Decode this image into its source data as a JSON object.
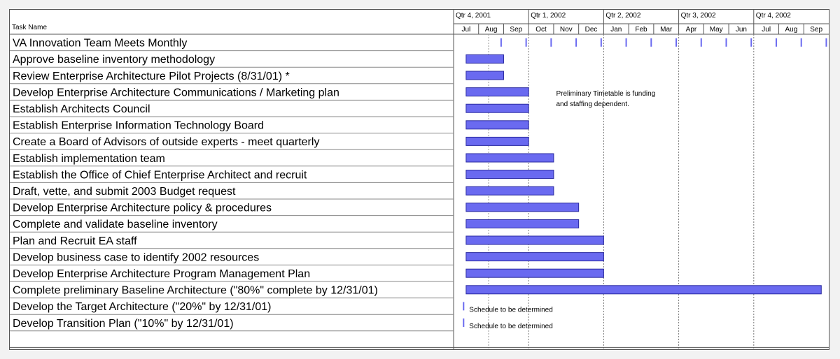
{
  "chart_data": {
    "type": "gantt",
    "task_column_header": "Task Name",
    "quarters": [
      "Qtr 4, 2001",
      "Qtr 1, 2002",
      "Qtr 2, 2002",
      "Qtr 3, 2002",
      "Qtr 4, 2002"
    ],
    "months": [
      "Jul",
      "Aug",
      "Sep",
      "Oct",
      "Nov",
      "Dec",
      "Jan",
      "Feb",
      "Mar",
      "Apr",
      "May",
      "Jun",
      "Jul",
      "Aug",
      "Sep"
    ],
    "bar_color": "#6a6af0",
    "tasks": [
      {
        "name": "VA Innovation Team Meets Monthly",
        "type": "recurring",
        "months": [
          1.9,
          2.9,
          3.9,
          4.9,
          5.9,
          6.9,
          7.9,
          8.9,
          9.9,
          10.9,
          11.9,
          12.9,
          13.9,
          14.9
        ]
      },
      {
        "name": "Approve baseline inventory methodology",
        "start": 0.5,
        "end": 2.0
      },
      {
        "name": "Review Enterprise Architecture Pilot Projects (8/31/01) *",
        "start": 0.5,
        "end": 2.0
      },
      {
        "name": "Develop Enterprise Architecture Communications / Marketing plan",
        "start": 0.5,
        "end": 3.0
      },
      {
        "name": "Establish Architects Council",
        "start": 0.5,
        "end": 3.0
      },
      {
        "name": "Establish Enterprise Information Technology Board",
        "start": 0.5,
        "end": 3.0
      },
      {
        "name": "Create a Board of Advisors of outside experts - meet quarterly",
        "start": 0.5,
        "end": 3.0
      },
      {
        "name": "Establish implementation team",
        "start": 0.5,
        "end": 4.0
      },
      {
        "name": "Establish the Office of Chief Enterprise Architect and recruit",
        "start": 0.5,
        "end": 4.0
      },
      {
        "name": "Draft, vette, and submit 2003 Budget request",
        "start": 0.5,
        "end": 4.0
      },
      {
        "name": "Develop Enterprise Architecture policy & procedures",
        "start": 0.5,
        "end": 5.0
      },
      {
        "name": "Complete and validate baseline inventory",
        "start": 0.5,
        "end": 5.0
      },
      {
        "name": "Plan and Recruit EA staff",
        "start": 0.5,
        "end": 6.0
      },
      {
        "name": "Develop business case to identify 2002 resources",
        "start": 0.5,
        "end": 6.0
      },
      {
        "name": "Develop Enterprise Architecture Program Management Plan",
        "start": 0.5,
        "end": 6.0
      },
      {
        "name": "Complete preliminary Baseline Architecture (\"80%\" complete by 12/31/01)",
        "start": 0.5,
        "end": 14.7
      },
      {
        "name": "Develop the Target Architecture (\"20%\" by 12/31/01)",
        "type": "tbd",
        "note": "Schedule to be determined"
      },
      {
        "name": "Develop Transition Plan (\"10%\" by 12/31/01)",
        "type": "tbd",
        "note": "Schedule to be determined"
      }
    ],
    "annotation": [
      "Preliminary Timetable is funding",
      "and staffing dependent."
    ]
  }
}
